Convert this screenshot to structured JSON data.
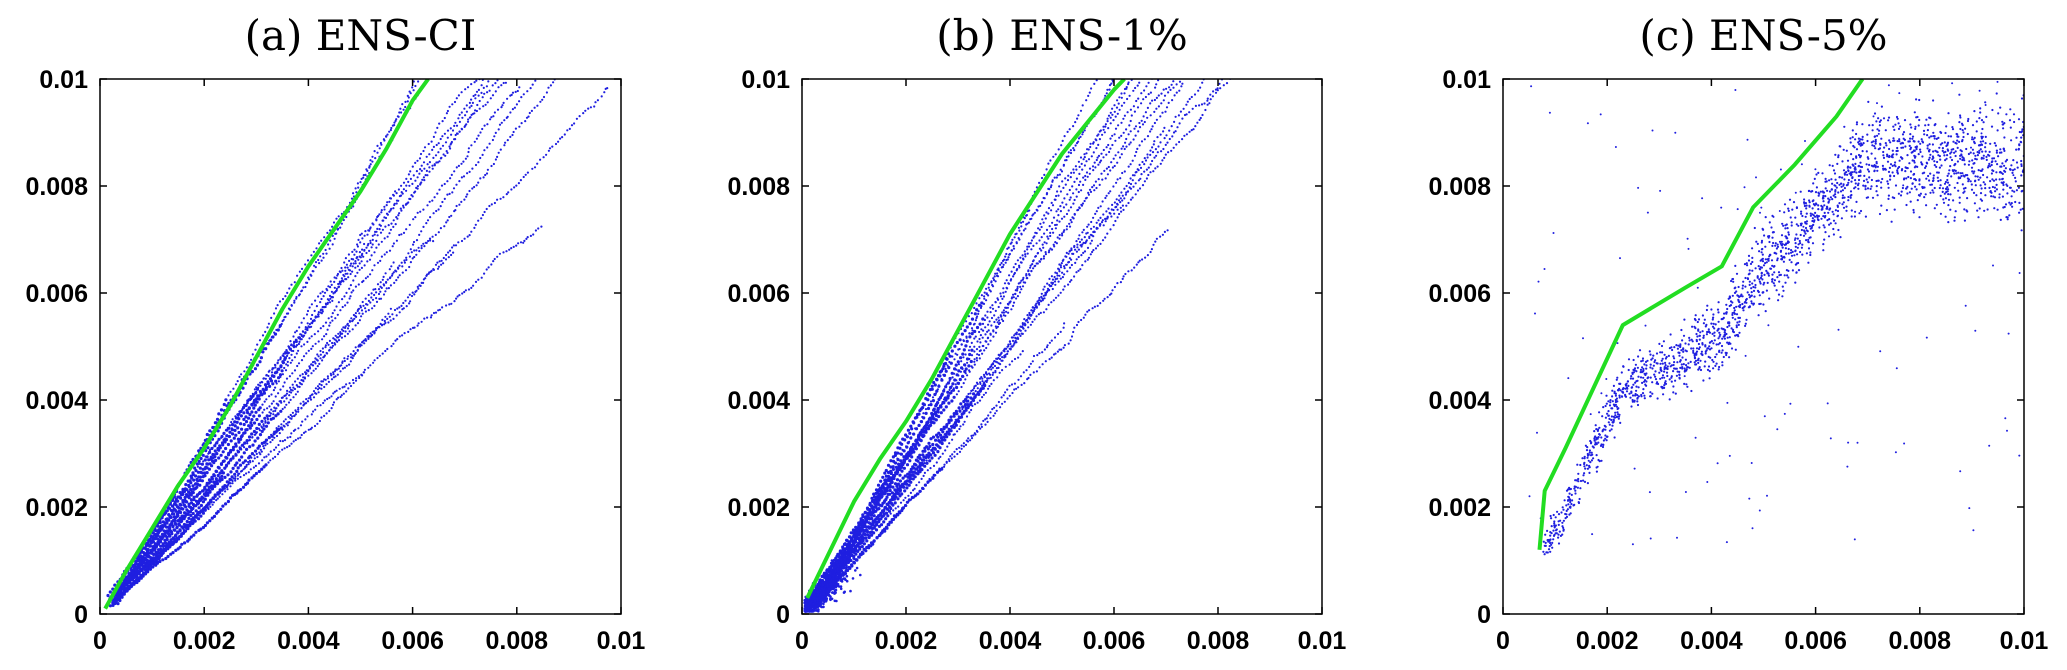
{
  "chart_data": [
    {
      "type": "scatter",
      "title": "(a) ENS-CI",
      "xlim": [
        0,
        0.01
      ],
      "ylim": [
        0,
        0.01
      ],
      "xticks": [
        "0",
        "0.002",
        "0.004",
        "0.006",
        "0.008",
        "0.01"
      ],
      "yticks": [
        "0",
        "0.002",
        "0.004",
        "0.006",
        "0.008",
        "0.01"
      ],
      "grid": false,
      "scatter_color": "#1f1fe0",
      "line_color": "#22dd22",
      "scatter_style": "trajectories",
      "reference_line": {
        "x": [
          0.0001,
          0.0005,
          0.001,
          0.0015,
          0.002,
          0.0025,
          0.003,
          0.0035,
          0.004,
          0.0045,
          0.005,
          0.0055,
          0.006,
          0.0063
        ],
        "y": [
          0.0001,
          0.0008,
          0.0016,
          0.0024,
          0.0031,
          0.0039,
          0.0048,
          0.0057,
          0.0065,
          0.0072,
          0.0079,
          0.0087,
          0.0096,
          0.01
        ]
      }
    },
    {
      "type": "scatter",
      "title": "(b) ENS-1%",
      "xlim": [
        0,
        0.01
      ],
      "ylim": [
        0,
        0.01
      ],
      "xticks": [
        "0",
        "0.002",
        "0.004",
        "0.006",
        "0.008",
        "0.01"
      ],
      "yticks": [
        "0",
        "0.002",
        "0.004",
        "0.006",
        "0.008",
        "0.01"
      ],
      "grid": false,
      "scatter_color": "#1f1fe0",
      "line_color": "#22dd22",
      "scatter_style": "trajectories-with-cluster",
      "reference_line": {
        "x": [
          0.0001,
          0.0005,
          0.001,
          0.0015,
          0.002,
          0.0025,
          0.003,
          0.0035,
          0.004,
          0.0046,
          0.005,
          0.0055,
          0.006,
          0.0062
        ],
        "y": [
          0.0003,
          0.0011,
          0.0021,
          0.0029,
          0.0036,
          0.0044,
          0.0053,
          0.0062,
          0.0071,
          0.008,
          0.0086,
          0.0092,
          0.0098,
          0.01
        ]
      }
    },
    {
      "type": "scatter",
      "title": "(c) ENS-5%",
      "xlim": [
        0,
        0.01
      ],
      "ylim": [
        0,
        0.01
      ],
      "xticks": [
        "0",
        "0.002",
        "0.004",
        "0.006",
        "0.008",
        "0.01"
      ],
      "yticks": [
        "0",
        "0.002",
        "0.004",
        "0.006",
        "0.008",
        "0.01"
      ],
      "grid": false,
      "scatter_color": "#1f1fe0",
      "line_color": "#22dd22",
      "scatter_style": "diffuse-cloud",
      "reference_line": {
        "x": [
          0.0007,
          0.0008,
          0.0012,
          0.0023,
          0.0035,
          0.0042,
          0.0048,
          0.0056,
          0.0064,
          0.0069
        ],
        "y": [
          0.0012,
          0.0023,
          0.0031,
          0.0054,
          0.0061,
          0.0065,
          0.0076,
          0.0084,
          0.0093,
          0.01
        ]
      }
    }
  ]
}
